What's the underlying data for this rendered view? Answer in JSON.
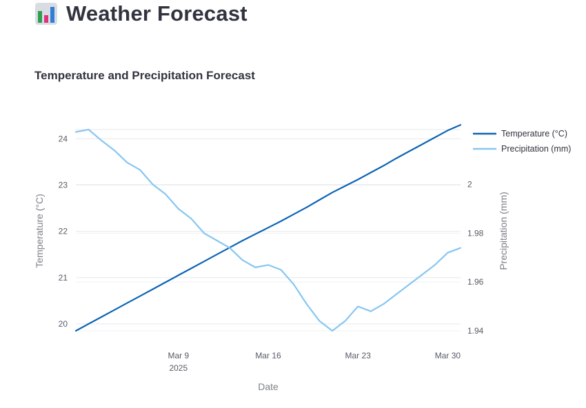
{
  "app": {
    "title": "Weather Forecast",
    "icon": "bar-chart-icon"
  },
  "chart_data": {
    "type": "line",
    "title": "Temperature and Precipitation Forecast",
    "xlabel": "Date",
    "ylabel": "Temperature (°C)",
    "y2label": "Precipitation (mm)",
    "x": [
      "2025-03-01",
      "2025-03-02",
      "2025-03-03",
      "2025-03-04",
      "2025-03-05",
      "2025-03-06",
      "2025-03-07",
      "2025-03-08",
      "2025-03-09",
      "2025-03-10",
      "2025-03-11",
      "2025-03-12",
      "2025-03-13",
      "2025-03-14",
      "2025-03-15",
      "2025-03-16",
      "2025-03-17",
      "2025-03-18",
      "2025-03-19",
      "2025-03-20",
      "2025-03-21",
      "2025-03-22",
      "2025-03-23",
      "2025-03-24",
      "2025-03-25",
      "2025-03-26",
      "2025-03-27",
      "2025-03-28",
      "2025-03-29",
      "2025-03-30",
      "2025-03-31"
    ],
    "xlim": [
      "2025-03-01",
      "2025-03-31"
    ],
    "x_ticks": [
      {
        "date": "2025-03-09",
        "label": "Mar 9",
        "sublabel": "2025"
      },
      {
        "date": "2025-03-16",
        "label": "Mar 16",
        "sublabel": ""
      },
      {
        "date": "2025-03-23",
        "label": "Mar 23",
        "sublabel": ""
      },
      {
        "date": "2025-03-30",
        "label": "Mar 30",
        "sublabel": ""
      }
    ],
    "ylim": [
      19.85,
      24.2
    ],
    "yticks": [
      20,
      21,
      22,
      23,
      24
    ],
    "y2lim": [
      1.94,
      2.0225
    ],
    "y2ticks": [
      1.94,
      1.96,
      1.98,
      2
    ],
    "y2tick_labels": [
      "1.94",
      "1.96",
      "1.98",
      "2"
    ],
    "grid": true,
    "legend_position": "top-right",
    "series": [
      {
        "name": "Temperature (°C)",
        "axis": "y",
        "color": "#0b63b5",
        "values": [
          19.85,
          20.0,
          20.15,
          20.3,
          20.45,
          20.6,
          20.75,
          20.9,
          21.05,
          21.2,
          21.35,
          21.5,
          21.65,
          21.8,
          21.94,
          22.08,
          22.22,
          22.37,
          22.52,
          22.68,
          22.84,
          22.98,
          23.12,
          23.27,
          23.42,
          23.58,
          23.73,
          23.88,
          24.03,
          24.18,
          24.3
        ]
      },
      {
        "name": "Precipitation (mm)",
        "axis": "y2",
        "color": "#85c6f2",
        "values": [
          2.0215,
          2.0225,
          2.018,
          2.014,
          2.009,
          2.006,
          2.0,
          1.996,
          1.99,
          1.986,
          1.98,
          1.977,
          1.974,
          1.969,
          1.966,
          1.967,
          1.965,
          1.959,
          1.951,
          1.944,
          1.94,
          1.944,
          1.95,
          1.948,
          1.951,
          1.955,
          1.959,
          1.963,
          1.967,
          1.972,
          1.974
        ]
      }
    ]
  }
}
